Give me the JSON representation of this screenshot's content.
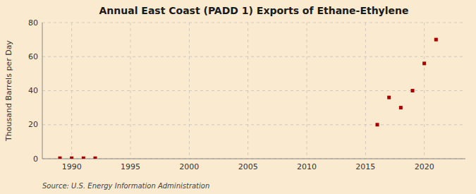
{
  "chart_data": {
    "type": "scatter",
    "title": "Annual East Coast (PADD 1) Exports of Ethane-Ethylene",
    "ylabel": "Thousand Barrels per Day",
    "source": "Source: U.S. Energy Information Administration",
    "x": [
      1989,
      1990,
      1991,
      1992,
      2016,
      2017,
      2018,
      2019,
      2020,
      2021
    ],
    "values": [
      0.3,
      0.3,
      0.3,
      0.3,
      20,
      36,
      30,
      40,
      56,
      70
    ],
    "color": "#aa0000",
    "marker": "square",
    "xlim": [
      1987.5,
      2023.5
    ],
    "ylim": [
      0,
      80
    ],
    "xticks": [
      1990,
      1995,
      2000,
      2005,
      2010,
      2015,
      2020
    ],
    "yticks": [
      0,
      20,
      40,
      60,
      80
    ],
    "grid": true
  }
}
